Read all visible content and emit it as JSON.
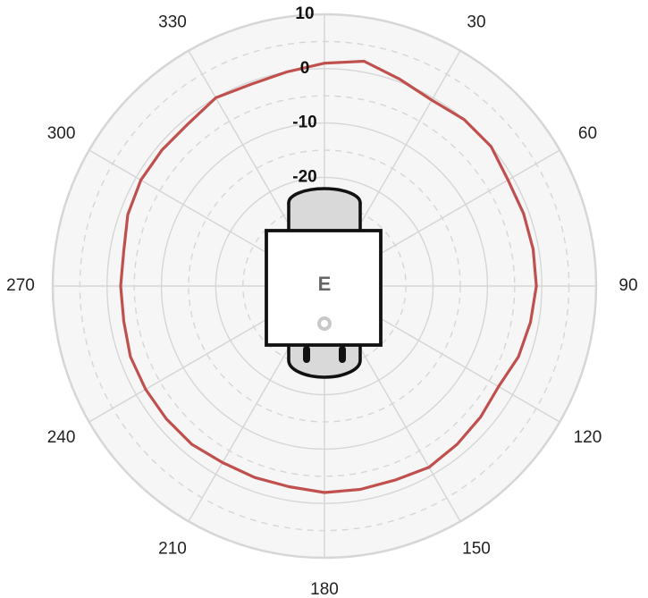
{
  "chart_data": {
    "type": "polar-line",
    "title": "",
    "angular_unit": "degrees",
    "angle_zero": "top",
    "angle_direction": "clockwise",
    "angular_ticks": [
      "30",
      "60",
      "90",
      "120",
      "150",
      "180",
      "210",
      "240",
      "270",
      "300",
      "330"
    ],
    "radial_ticks": [
      "10",
      "0",
      "-10",
      "-20"
    ],
    "radial_range": [
      -40,
      10
    ],
    "grid": true,
    "background_color": "#f6f6f6",
    "grid_color": "#d6d6d6",
    "series": [
      {
        "color": "#c0504d",
        "angles": [
          0,
          10,
          20,
          30,
          40,
          50,
          60,
          70,
          80,
          90,
          100,
          110,
          120,
          130,
          140,
          150,
          160,
          170,
          180,
          190,
          200,
          210,
          220,
          230,
          240,
          250,
          260,
          270,
          280,
          290,
          300,
          310,
          320,
          330,
          340,
          350,
          360
        ],
        "values": [
          1,
          2,
          0.5,
          -0.5,
          0,
          0,
          -1,
          -1,
          -1,
          -1,
          -1.5,
          -2,
          -3,
          -2.5,
          -2,
          -1.5,
          -2,
          -2,
          -2,
          -2.5,
          -2.5,
          -2.5,
          -2,
          -2,
          -2,
          -2,
          -2.5,
          -2.5,
          -2.5,
          -1.5,
          -1,
          -1,
          -1,
          0,
          -0.5,
          0,
          1
        ]
      }
    ],
    "center_device": {
      "logo_text": "E",
      "colors": {
        "body": "#ffffff",
        "cap": "#d9d9d9",
        "outline": "#111111",
        "ring": "#c8c8c8",
        "logo": "#666666"
      }
    }
  }
}
